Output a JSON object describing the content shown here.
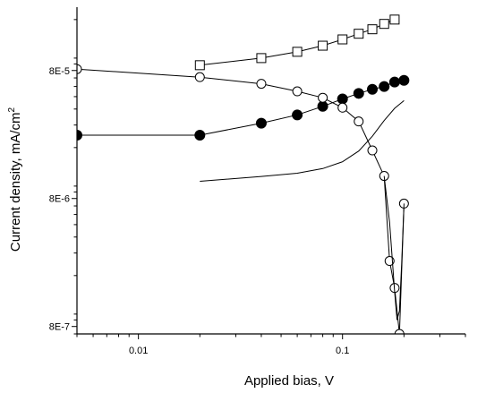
{
  "chart_data": {
    "type": "scatter",
    "title": "",
    "xlabel": "Applied bias, V",
    "ylabel_text": "Current density, mA/cm",
    "ylabel_sup": "2",
    "xscale": "log",
    "yscale": "log",
    "xlim": [
      0.005,
      0.4
    ],
    "ylim": [
      7e-07,
      0.00025
    ],
    "x_ticks": [
      {
        "value": 0.01,
        "label": "0.01"
      },
      {
        "value": 0.1,
        "label": "0.1"
      }
    ],
    "y_ticks": [
      {
        "value": 8e-07,
        "label": "8E-7"
      },
      {
        "value": 8e-06,
        "label": "8E-6"
      },
      {
        "value": 8e-05,
        "label": "8E-5"
      }
    ],
    "grid": false,
    "series": [
      {
        "marker": "open-square",
        "line": "solid",
        "x": [
          0.02,
          0.04,
          0.06,
          0.08,
          0.1,
          0.12,
          0.14,
          0.16,
          0.18
        ],
        "y": [
          8.8e-05,
          0.0001,
          0.000112,
          0.000125,
          0.00014,
          0.000155,
          0.000168,
          0.000185,
          0.0002
        ]
      },
      {
        "marker": "filled-circle",
        "line": "solid",
        "x": [
          0.005,
          0.02,
          0.04,
          0.06,
          0.08,
          0.1,
          0.12,
          0.14,
          0.16,
          0.18,
          0.2
        ],
        "y": [
          2.5e-05,
          2.5e-05,
          3.1e-05,
          3.6e-05,
          4.2e-05,
          4.8e-05,
          5.3e-05,
          5.7e-05,
          6e-05,
          6.5e-05,
          6.7e-05
        ]
      },
      {
        "marker": "open-circle",
        "line": "solid",
        "x": [
          0.005,
          0.02,
          0.04,
          0.06,
          0.08,
          0.1,
          0.12,
          0.14,
          0.16,
          0.17,
          0.18,
          0.19,
          0.2
        ],
        "y": [
          8.2e-05,
          7.1e-05,
          6.3e-05,
          5.5e-05,
          4.9e-05,
          4.1e-05,
          3.2e-05,
          1.9e-05,
          1.2e-05,
          2.6e-06,
          1.6e-06,
          7e-07,
          7.3e-06
        ]
      },
      {
        "marker": "none",
        "line": "solid",
        "x": [
          0.02,
          0.04,
          0.06,
          0.08,
          0.1,
          0.12,
          0.14,
          0.16,
          0.18,
          0.2
        ],
        "y": [
          1.09e-05,
          1.19e-05,
          1.26e-05,
          1.37e-05,
          1.55e-05,
          1.88e-05,
          2.45e-05,
          3.25e-05,
          4.05e-05,
          4.65e-05
        ]
      },
      {
        "marker": "none",
        "line": "solid",
        "x": [
          0.16,
          0.17,
          0.18,
          0.185,
          0.19,
          0.195,
          0.2
        ],
        "y": [
          1.2e-05,
          5.2e-06,
          1.5e-06,
          9e-07,
          1.06e-06,
          2.5e-06,
          7.3e-06
        ]
      }
    ]
  }
}
